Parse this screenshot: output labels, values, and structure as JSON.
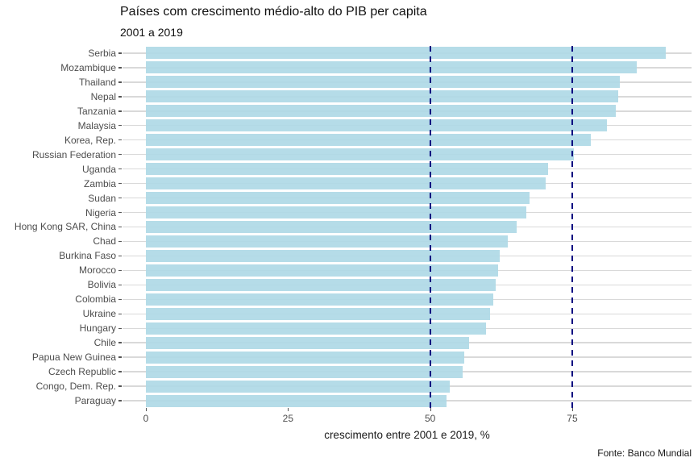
{
  "chart_data": {
    "type": "bar",
    "orientation": "horizontal",
    "title": "Países com crescimento médio-alto do PIB per capita",
    "subtitle": "2001 a 2019",
    "xlabel": "crescimento entre 2001 e 2019, %",
    "caption": "Fonte: Banco Mundial",
    "categories": [
      "Serbia",
      "Mozambique",
      "Thailand",
      "Nepal",
      "Tanzania",
      "Malaysia",
      "Korea, Rep.",
      "Russian Federation",
      "Uganda",
      "Zambia",
      "Sudan",
      "Nigeria",
      "Hong Kong SAR, China",
      "Chad",
      "Burkina Faso",
      "Morocco",
      "Bolivia",
      "Colombia",
      "Ukraine",
      "Hungary",
      "Chile",
      "Papua New Guinea",
      "Czech Republic",
      "Congo, Dem. Rep.",
      "Paraguay"
    ],
    "values": [
      91.5,
      86.3,
      83.4,
      83.1,
      82.6,
      81.1,
      78.2,
      75.3,
      70.8,
      70.3,
      67.5,
      66.9,
      65.2,
      63.7,
      62.2,
      62.0,
      61.5,
      61.1,
      60.6,
      59.9,
      56.8,
      56.0,
      55.7,
      53.4,
      52.9
    ],
    "xticks": [
      0,
      25,
      50,
      75
    ],
    "xlim": [
      0,
      96
    ],
    "reference_lines": [
      50,
      75
    ],
    "grid": "horizontal-only",
    "legend": "none",
    "colors": {
      "bar": "rgba(173,216,230,0.9)",
      "reference_line": "#000080",
      "gridline": "#d9d9d9",
      "axis_text": "#4d4d4d",
      "text": "#1a1a1a",
      "background": "#ffffff"
    }
  }
}
